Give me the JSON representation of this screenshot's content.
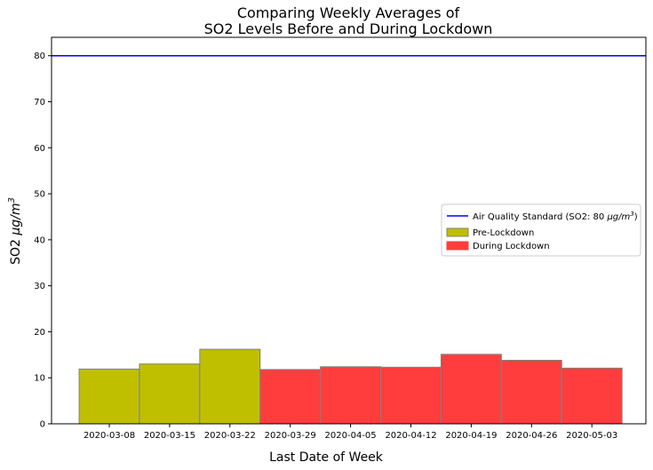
{
  "chart_data": {
    "type": "bar",
    "title_line1": "Comparing Weekly Averages of",
    "title_line2": "SO2 Levels Before and During Lockdown",
    "xlabel": "Last Date of Week",
    "ylabel_prefix": "SO2 ",
    "ylabel_unit_base": "μg/m",
    "ylabel_unit_exp": "3",
    "ylim": [
      0,
      84
    ],
    "yticks": [
      0,
      10,
      20,
      30,
      40,
      50,
      60,
      70,
      80
    ],
    "categories": [
      "2020-03-08",
      "2020-03-15",
      "2020-03-22",
      "2020-03-29",
      "2020-04-05",
      "2020-04-12",
      "2020-04-19",
      "2020-04-26",
      "2020-05-03"
    ],
    "values": [
      11.9,
      13.0,
      16.2,
      11.8,
      12.4,
      12.3,
      15.1,
      13.8,
      12.1
    ],
    "groups": [
      "Pre-Lockdown",
      "Pre-Lockdown",
      "Pre-Lockdown",
      "During Lockdown",
      "During Lockdown",
      "During Lockdown",
      "During Lockdown",
      "During Lockdown",
      "During Lockdown"
    ],
    "series": [
      {
        "name": "Pre-Lockdown",
        "color": "#bfbf00"
      },
      {
        "name": "During Lockdown",
        "color": "#ff3d3d"
      }
    ],
    "reference_line": {
      "value": 80,
      "color": "#0000ff",
      "legend_prefix": "Air Quality Standard (SO2: 80 ",
      "legend_unit_base": "μg/m",
      "legend_unit_exp": "3",
      "legend_suffix": ")"
    },
    "bar_edge_color": "#808080",
    "grid": false,
    "legend_position": "center-right"
  }
}
